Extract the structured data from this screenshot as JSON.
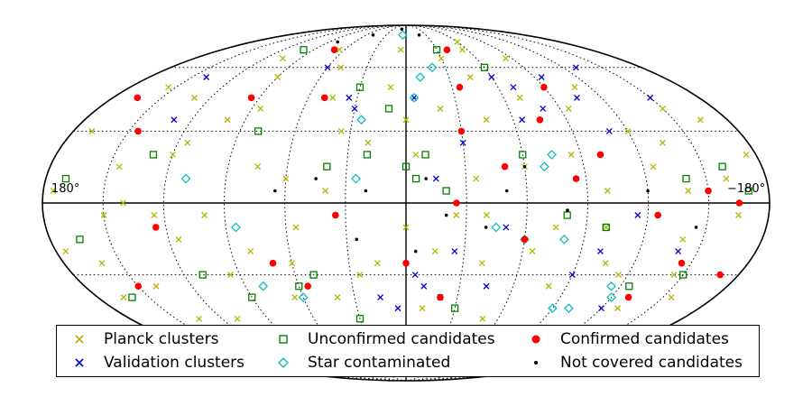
{
  "chart_data": {
    "type": "scatter",
    "projection": "mollweide",
    "grid": true,
    "legend_position": "bottom",
    "tick_labels": {
      "left": "180°",
      "right": "−180°"
    },
    "colors": {
      "planck": "#b5b500",
      "validation": "#0000cc",
      "unconfirmed": "#008000",
      "star": "#11bfbf",
      "confirmed": "#ff0000",
      "not_covered": "#000000"
    },
    "series": [
      {
        "name": "Planck clusters",
        "marker": "x",
        "points": [
          [
            150,
            -5
          ],
          [
            120,
            20
          ],
          [
            100,
            35
          ],
          [
            80,
            -20
          ],
          [
            60,
            10
          ],
          [
            40,
            -40
          ],
          [
            20,
            25
          ],
          [
            0,
            -10
          ],
          [
            -20,
            40
          ],
          [
            -40,
            -25
          ],
          [
            -60,
            15
          ],
          [
            -80,
            -35
          ],
          [
            -100,
            5
          ],
          [
            -120,
            30
          ],
          [
            -140,
            -15
          ],
          [
            -160,
            10
          ],
          [
            170,
            30
          ],
          [
            140,
            -35
          ],
          [
            110,
            -50
          ],
          [
            90,
            55
          ],
          [
            70,
            -55
          ],
          [
            50,
            60
          ],
          [
            30,
            -60
          ],
          [
            10,
            50
          ],
          [
            -10,
            -45
          ],
          [
            -30,
            65
          ],
          [
            -50,
            -50
          ],
          [
            -70,
            45
          ],
          [
            -90,
            -60
          ],
          [
            -110,
            50
          ],
          [
            -130,
            -45
          ],
          [
            -150,
            40
          ],
          [
            160,
            -25
          ],
          [
            130,
            45
          ],
          [
            115,
            -15
          ],
          [
            95,
            -30
          ],
          [
            75,
            15
          ],
          [
            55,
            -10
          ],
          [
            35,
            30
          ],
          [
            15,
            -25
          ],
          [
            -5,
            20
          ],
          [
            -25,
            -5
          ],
          [
            -45,
            35
          ],
          [
            -65,
            -20
          ],
          [
            -85,
            20
          ],
          [
            -105,
            -25
          ],
          [
            -125,
            15
          ],
          [
            -145,
            -30
          ],
          [
            -165,
            -5
          ],
          [
            175,
            -20
          ],
          [
            145,
            15
          ],
          [
            125,
            -5
          ],
          [
            105,
            65
          ],
          [
            85,
            40
          ],
          [
            65,
            -40
          ],
          [
            45,
            45
          ],
          [
            25,
            -30
          ],
          [
            5,
            70
          ],
          [
            -15,
            -20
          ],
          [
            -35,
            10
          ],
          [
            -55,
            70
          ],
          [
            -75,
            -10
          ],
          [
            -95,
            40
          ],
          [
            -115,
            -55
          ],
          [
            -135,
            25
          ],
          [
            -155,
            -40
          ],
          [
            155,
            50
          ],
          [
            135,
            -50
          ],
          [
            65,
            70
          ],
          [
            -60,
            75
          ],
          [
            20,
            -65
          ],
          [
            -20,
            -60
          ],
          [
            140,
            0
          ],
          [
            -140,
            5
          ],
          [
            100,
            -5
          ],
          [
            -100,
            -10
          ],
          [
            40,
            5
          ],
          [
            -40,
            -5
          ],
          [
            0,
            35
          ],
          [
            60,
            -25
          ],
          [
            -175,
            20
          ],
          [
            175,
            5
          ],
          [
            165,
            -40
          ],
          [
            -165,
            35
          ],
          [
            85,
            -65
          ],
          [
            -85,
            65
          ],
          [
            115,
            25
          ],
          [
            -115,
            -30
          ],
          [
            45,
            -55
          ],
          [
            -45,
            55
          ]
        ]
      },
      {
        "name": "Validation clusters",
        "marker": "x",
        "points": [
          [
            -70,
            50
          ],
          [
            -80,
            40
          ],
          [
            -95,
            55
          ],
          [
            -105,
            45
          ],
          [
            -65,
            35
          ],
          [
            -110,
            30
          ],
          [
            -130,
            60
          ],
          [
            -120,
            -45
          ],
          [
            -140,
            -20
          ],
          [
            -10,
            -35
          ],
          [
            -20,
            -40
          ],
          [
            5,
            -45
          ],
          [
            15,
            -40
          ],
          [
            -5,
            -30
          ],
          [
            30,
            40
          ],
          [
            35,
            45
          ],
          [
            -5,
            45
          ],
          [
            -15,
            10
          ],
          [
            -25,
            -20
          ],
          [
            -50,
            -10
          ],
          [
            -100,
            -20
          ],
          [
            -115,
            -5
          ],
          [
            -150,
            45
          ],
          [
            -60,
            55
          ],
          [
            -90,
            -30
          ],
          [
            140,
            55
          ],
          [
            130,
            35
          ],
          [
            60,
            60
          ],
          [
            -30,
            25
          ],
          [
            -45,
            -35
          ]
        ]
      },
      {
        "name": "Unconfirmed candidates",
        "marker": "square",
        "points": [
          [
            170,
            10
          ],
          [
            165,
            -15
          ],
          [
            160,
            -40
          ],
          [
            130,
            20
          ],
          [
            110,
            -30
          ],
          [
            90,
            -40
          ],
          [
            80,
            30
          ],
          [
            60,
            -35
          ],
          [
            50,
            -30
          ],
          [
            40,
            15
          ],
          [
            30,
            -50
          ],
          [
            20,
            20
          ],
          [
            -5,
            10
          ],
          [
            -10,
            20
          ],
          [
            -30,
            -45
          ],
          [
            -60,
            20
          ],
          [
            -100,
            -10
          ],
          [
            -125,
            -35
          ],
          [
            -150,
            -30
          ],
          [
            -160,
            15
          ],
          [
            -170,
            5
          ],
          [
            -140,
            10
          ],
          [
            100,
            70
          ],
          [
            -30,
            70
          ],
          [
            -60,
            60
          ],
          [
            10,
            40
          ],
          [
            30,
            50
          ],
          [
            0,
            15
          ],
          [
            -20,
            5
          ],
          [
            -80,
            -5
          ]
        ]
      },
      {
        "name": "Star contaminated",
        "marker": "diamond",
        "points": [
          [
            110,
            10
          ],
          [
            85,
            -10
          ],
          [
            80,
            -35
          ],
          [
            25,
            10
          ],
          [
            25,
            35
          ],
          [
            -45,
            -10
          ],
          [
            -60,
            -15
          ],
          [
            -70,
            15
          ],
          [
            -75,
            20
          ],
          [
            -80,
            -15
          ],
          [
            -90,
            -45
          ],
          [
            -100,
            -45
          ],
          [
            -105,
            -60
          ],
          [
            -115,
            -35
          ],
          [
            -120,
            -40
          ],
          [
            60,
            -40
          ],
          [
            -10,
            55
          ],
          [
            -20,
            60
          ],
          [
            5,
            80
          ],
          [
            -5,
            45
          ]
        ]
      },
      {
        "name": "Confirmed candidates",
        "marker": "circle",
        "points": [
          [
            165,
            45
          ],
          [
            145,
            30
          ],
          [
            125,
            -10
          ],
          [
            100,
            -55
          ],
          [
            95,
            45
          ],
          [
            70,
            -25
          ],
          [
            55,
            -35
          ],
          [
            50,
            45
          ],
          [
            35,
            -5
          ],
          [
            20,
            -55
          ],
          [
            0,
            -25
          ],
          [
            -30,
            30
          ],
          [
            -25,
            0
          ],
          [
            -50,
            15
          ],
          [
            -60,
            -15
          ],
          [
            -75,
            35
          ],
          [
            -85,
            10
          ],
          [
            -125,
            -5
          ],
          [
            -150,
            5
          ],
          [
            -170,
            -30
          ],
          [
            -165,
            0
          ],
          [
            -145,
            -25
          ],
          [
            -130,
            -40
          ],
          [
            -40,
            70
          ],
          [
            -35,
            50
          ],
          [
            70,
            70
          ],
          [
            150,
            -35
          ],
          [
            -90,
            50
          ],
          [
            -100,
            20
          ],
          [
            -20,
            -40
          ]
        ]
      },
      {
        "name": "Not covered candidates",
        "marker": "dot",
        "points": [
          [
            65,
            5
          ],
          [
            45,
            10
          ],
          [
            20,
            5
          ],
          [
            -5,
            -20
          ],
          [
            -10,
            10
          ],
          [
            -20,
            -5
          ],
          [
            -40,
            -10
          ],
          [
            -60,
            15
          ],
          [
            -80,
            -3
          ],
          [
            -120,
            5
          ],
          [
            -145,
            -10
          ],
          [
            80,
            75
          ],
          [
            50,
            80
          ],
          [
            -20,
            80
          ],
          [
            10,
            85
          ],
          [
            25,
            -15
          ],
          [
            -50,
            5
          ]
        ]
      }
    ]
  }
}
